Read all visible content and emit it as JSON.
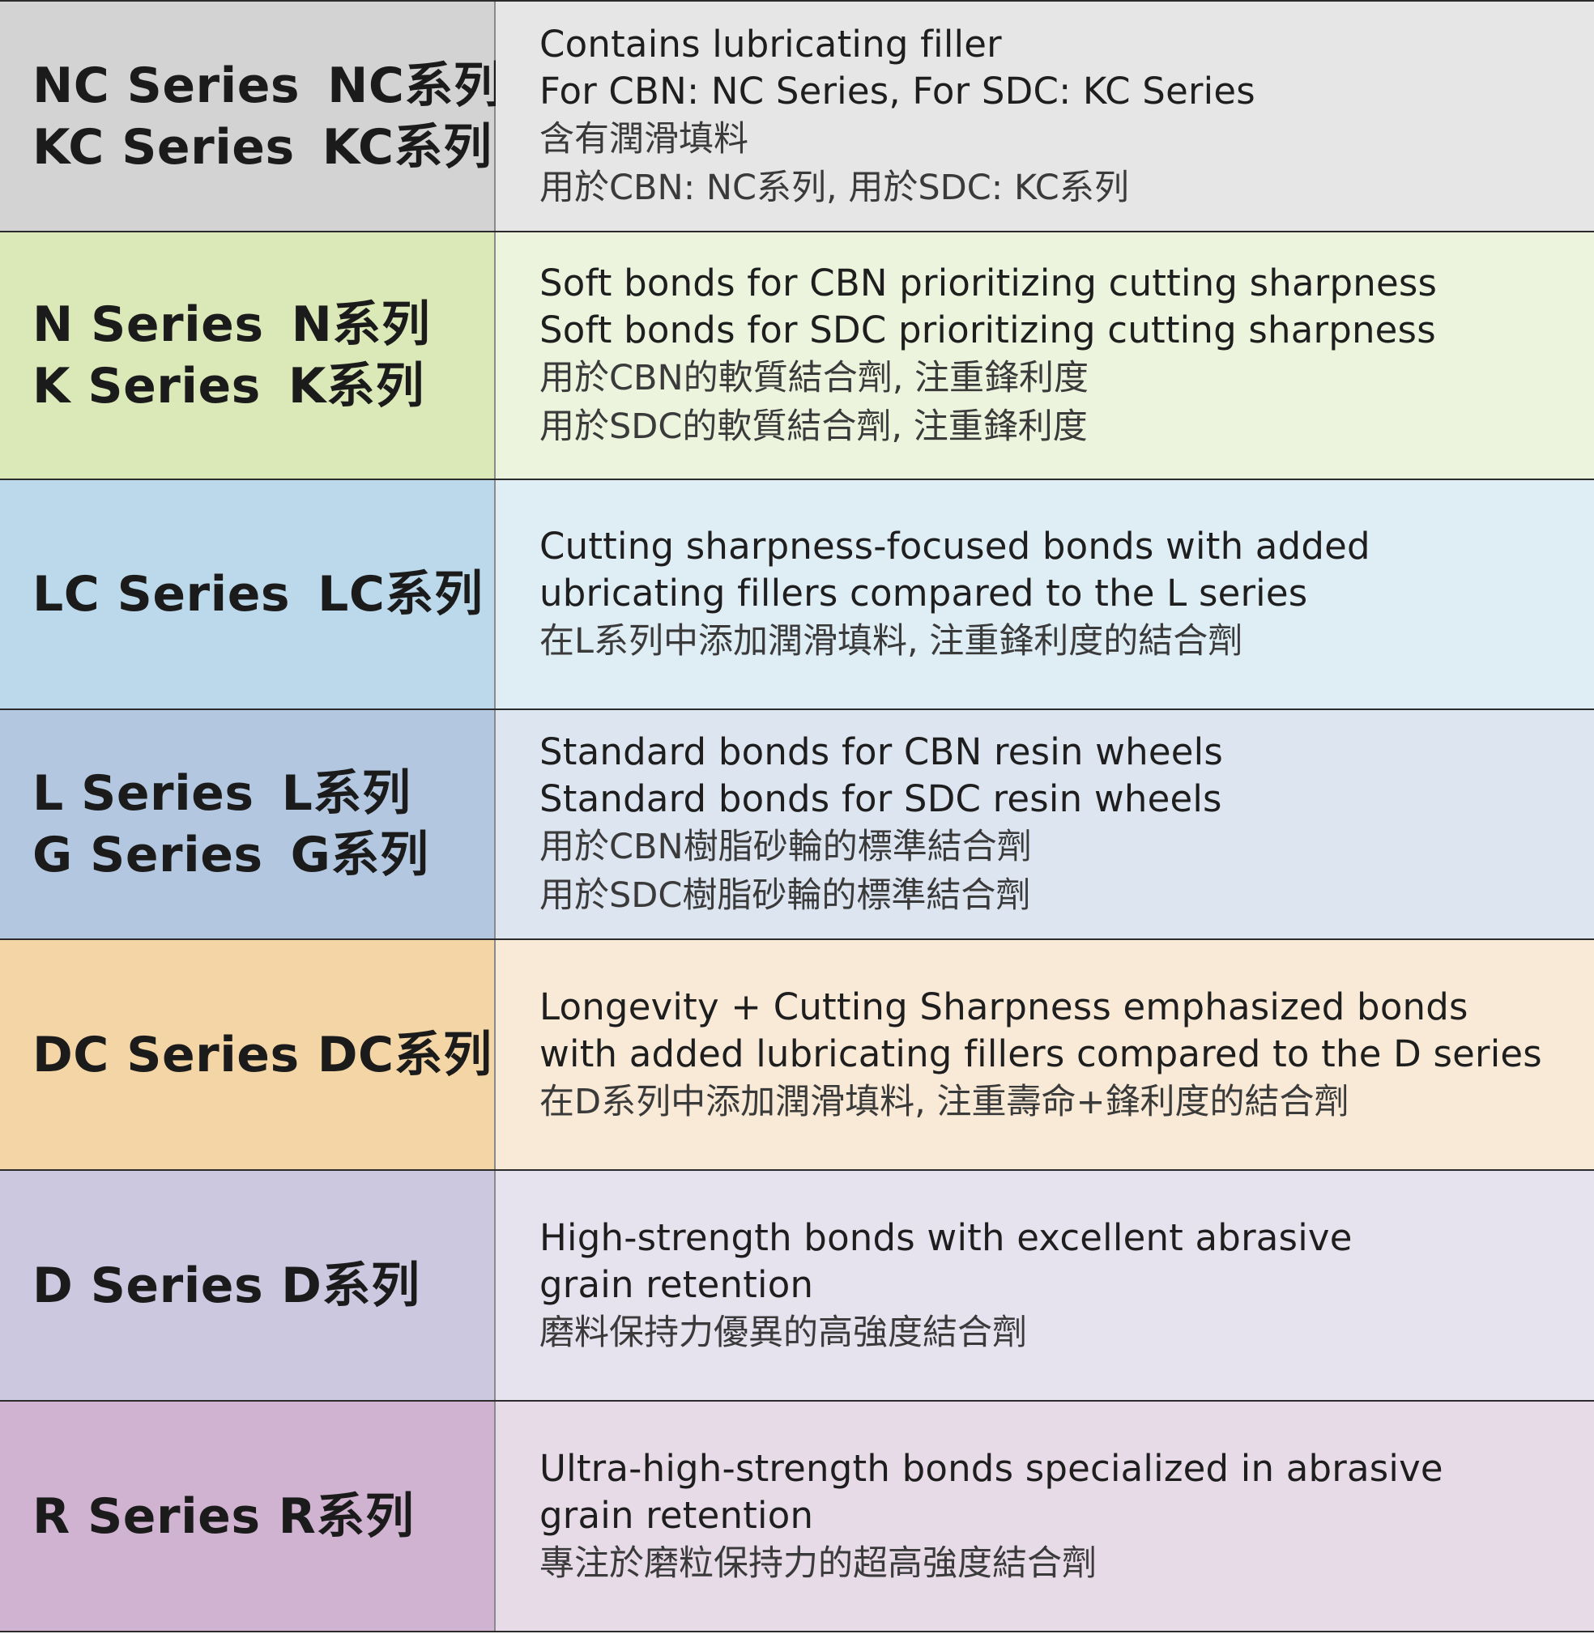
{
  "rows": [
    {
      "left_color": "#d3d3d3",
      "right_color": "#e6e6e6",
      "series": [
        {
          "en": "NC Series",
          "zh": "NC系列"
        },
        {
          "en": "KC Series",
          "zh": "KC系列"
        }
      ],
      "desc_en": [
        "Contains lubricating filler",
        "For CBN: NC Series, For SDC: KC Series"
      ],
      "desc_zh": [
        "含有潤滑填料",
        "用於CBN: NC系列, 用於SDC: KC系列"
      ]
    },
    {
      "left_color": "#dbe8b8",
      "right_color": "#edf4de",
      "series": [
        {
          "en": "N Series",
          "zh": "N系列"
        },
        {
          "en": "K Series",
          "zh": "K系列"
        }
      ],
      "desc_en": [
        "Soft bonds for CBN prioritizing cutting sharpness",
        "Soft bonds for SDC prioritizing cutting sharpness"
      ],
      "desc_zh": [
        "用於CBN的軟質結合劑, 注重鋒利度",
        "用於SDC的軟質結合劑, 注重鋒利度"
      ]
    },
    {
      "left_color": "#bbd9ea",
      "right_color": "#dfedf5",
      "series": [
        {
          "en": "LC Series",
          "zh": "LC系列"
        }
      ],
      "desc_en": [
        "Cutting sharpness-focused bonds with added",
        "ubricating fillers compared to the L series"
      ],
      "desc_zh": [
        "在L系列中添加潤滑填料, 注重鋒利度的結合劑"
      ]
    },
    {
      "left_color": "#b3c8e0",
      "right_color": "#dde5f0",
      "series": [
        {
          "en": "L Series",
          "zh": "L系列"
        },
        {
          "en": "G Series",
          "zh": "G系列"
        }
      ],
      "desc_en": [
        "Standard bonds for CBN resin wheels",
        "Standard bonds for SDC resin wheels"
      ],
      "desc_zh": [
        "用於CBN樹脂砂輪的標準結合劑",
        "用於SDC樹脂砂輪的標準結合劑"
      ]
    },
    {
      "left_color": "#f3d5a6",
      "right_color": "#f8ead6",
      "series": [
        {
          "en": "DC Series",
          "zh": "DC系列"
        }
      ],
      "desc_en": [
        "Longevity + Cutting Sharpness emphasized bonds",
        "with added lubricating fillers compared to the D series"
      ],
      "desc_zh": [
        "在D系列中添加潤滑填料, 注重壽命+鋒利度的結合劑"
      ]
    },
    {
      "left_color": "#cbc8e0",
      "right_color": "#e6e3ef",
      "series": [
        {
          "en": "D Series",
          "zh": "D系列"
        }
      ],
      "desc_en": [
        "High-strength bonds with excellent abrasive",
        "grain retention"
      ],
      "desc_zh": [
        "磨料保持力優異的高強度結合劑"
      ]
    },
    {
      "left_color": "#d0b2d1",
      "right_color": "#e7dbe8",
      "series": [
        {
          "en": "R Series",
          "zh": "R系列"
        }
      ],
      "desc_en": [
        "Ultra-high-strength bonds specialized in abrasive",
        "grain retention"
      ],
      "desc_zh": [
        "專注於磨粒保持力的超高強度結合劑"
      ]
    }
  ]
}
